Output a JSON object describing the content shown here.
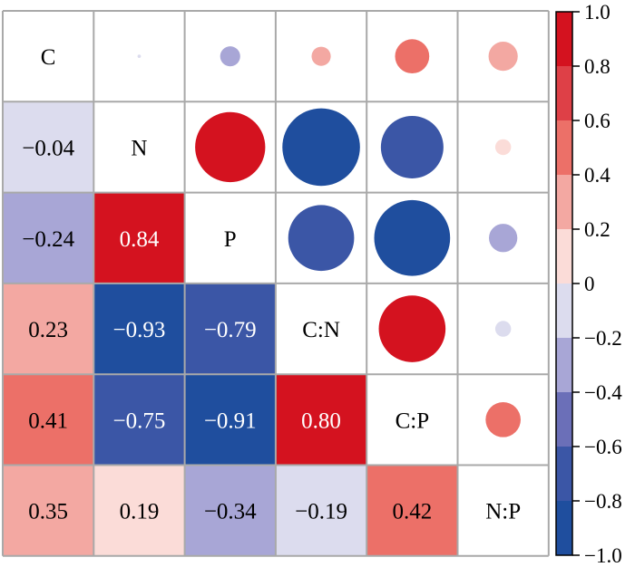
{
  "chart_data": {
    "type": "heatmap",
    "title": "",
    "variables": [
      "C",
      "N",
      "P",
      "C:N",
      "C:P",
      "N:P"
    ],
    "matrix": [
      [
        1,
        -0.04,
        -0.24,
        0.23,
        0.41,
        0.35
      ],
      [
        -0.04,
        1,
        0.84,
        -0.93,
        -0.75,
        0.19
      ],
      [
        -0.24,
        0.84,
        1,
        -0.79,
        -0.91,
        -0.34
      ],
      [
        0.23,
        -0.93,
        -0.79,
        1,
        0.8,
        -0.19
      ],
      [
        0.41,
        -0.75,
        -0.91,
        0.8,
        1,
        0.42
      ],
      [
        0.35,
        0.19,
        -0.34,
        -0.19,
        0.42,
        1
      ]
    ],
    "lower_triangle": "colored squares with printed values",
    "upper_triangle": "colored circles, size proportional to |r|",
    "diagonal": "variable names",
    "value_labels": [
      [
        "−0.04"
      ],
      [
        "−0.24",
        "0.84"
      ],
      [
        "0.23",
        "−0.93",
        "−0.79"
      ],
      [
        "0.41",
        "−0.75",
        "−0.91",
        "0.80"
      ],
      [
        "0.35",
        "0.19",
        "−0.34",
        "−0.19",
        "0.42"
      ]
    ],
    "colorbar": {
      "range": [
        -1,
        1
      ],
      "ticks": [
        "−1.0",
        "−0.8",
        "−0.6",
        "−0.4",
        "−0.2",
        "0",
        "0.2",
        "0.4",
        "0.6",
        "0.8",
        "1.0"
      ],
      "bins": [
        {
          "from": -1.0,
          "to": -0.8,
          "color": "#1f4e9e"
        },
        {
          "from": -0.8,
          "to": -0.6,
          "color": "#3b56a6"
        },
        {
          "from": -0.6,
          "to": -0.4,
          "color": "#6b6fb8"
        },
        {
          "from": -0.4,
          "to": -0.2,
          "color": "#a8a6d6"
        },
        {
          "from": -0.2,
          "to": 0.0,
          "color": "#dcdcee"
        },
        {
          "from": 0.0,
          "to": 0.2,
          "color": "#fbdcd8"
        },
        {
          "from": 0.2,
          "to": 0.4,
          "color": "#f3a8a2"
        },
        {
          "from": 0.4,
          "to": 0.6,
          "color": "#ec7068"
        },
        {
          "from": 0.6,
          "to": 0.8,
          "color": "#de4047"
        },
        {
          "from": 0.8,
          "to": 1.0,
          "color": "#d4121f"
        }
      ]
    },
    "text_colors": {
      "dark": "#000000",
      "light": "#ffffff"
    }
  }
}
